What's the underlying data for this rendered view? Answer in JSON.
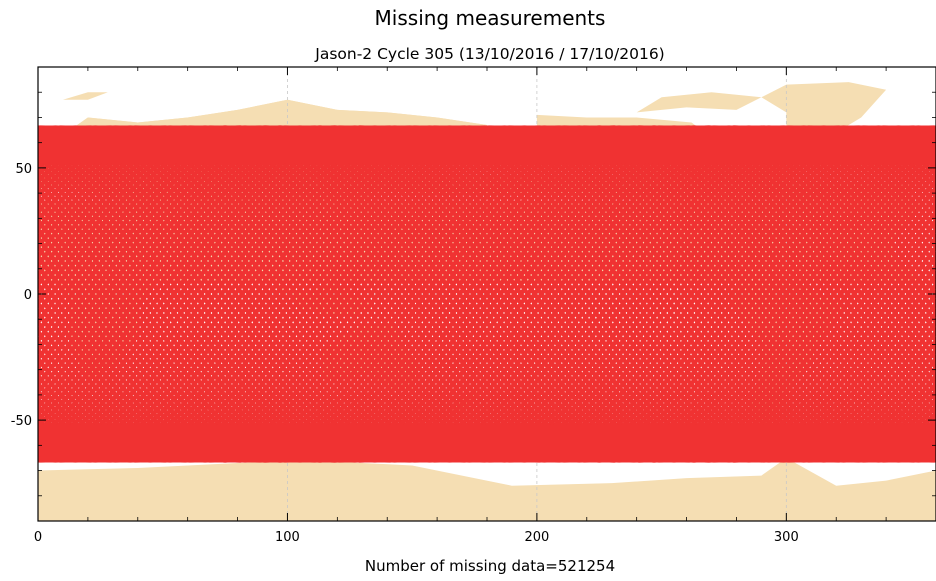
{
  "chart_data": {
    "type": "scatter",
    "title": "Missing measurements",
    "subtitle": "Jason-2  Cycle 305 (13/10/2016 / 17/10/2016)",
    "xlabel": "Number of missing data=521254",
    "ylabel": "",
    "xlim": [
      0,
      360
    ],
    "ylim": [
      -90,
      90
    ],
    "xticks": [
      0,
      100,
      200,
      300
    ],
    "yticks": [
      -50,
      0,
      50
    ],
    "grid": true,
    "legend": "none",
    "missing_count": 521254,
    "latitude_band": [
      -66,
      66
    ],
    "series": [
      {
        "name": "",
        "color": "#f03232",
        "description_points": "Ground-track crossings of missing measurements covering the latitude band -66 to 66 at all longitudes"
      }
    ],
    "background": {
      "land_color": "#f5deb3"
    }
  }
}
